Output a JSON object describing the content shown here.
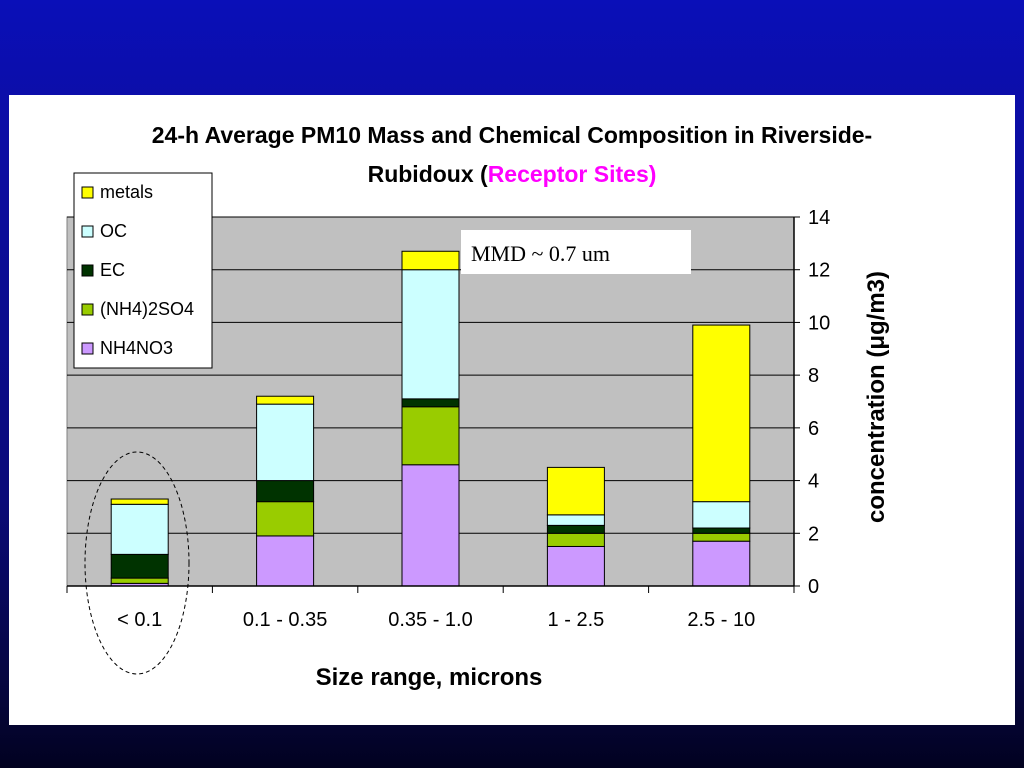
{
  "colors": {
    "background": "#0a0fb8",
    "panel": "#ffffff",
    "plot_area": "#c0c0c0",
    "title_accent": "#ff00ff",
    "NH4NO3": "#cc99ff",
    "(NH4)2SO4": "#99cc00",
    "EC": "#003300",
    "OC": "#ccffff",
    "metals": "#ffff00"
  },
  "chart_data": {
    "type": "bar",
    "stacked": true,
    "title_line1": "24-h Average PM10 Mass and Chemical Composition in Riverside-",
    "title_line2": "Rubidoux (",
    "title_accent": "Receptor Sites)",
    "xlabel": "Size range, microns",
    "ylabel": "concentration (μg/m3)",
    "y_axis_side": "right",
    "ylim": [
      0,
      14
    ],
    "yticks": [
      0,
      2,
      4,
      6,
      8,
      10,
      12,
      14
    ],
    "grid": true,
    "legend_position": "top-left",
    "categories": [
      "< 0.1",
      "0.1  - 0.35",
      "0.35 - 1.0",
      "1 - 2.5",
      "2.5 - 10"
    ],
    "series": [
      {
        "name": "NH4NO3",
        "values": [
          0.1,
          1.9,
          4.6,
          1.5,
          1.7
        ]
      },
      {
        "name": "(NH4)2SO4",
        "values": [
          0.2,
          1.3,
          2.2,
          0.5,
          0.3
        ]
      },
      {
        "name": "EC",
        "values": [
          0.9,
          0.8,
          0.3,
          0.3,
          0.2
        ]
      },
      {
        "name": "OC",
        "values": [
          1.9,
          2.9,
          4.9,
          0.4,
          1.0
        ]
      },
      {
        "name": "metals",
        "values": [
          0.2,
          0.3,
          0.7,
          1.8,
          6.7
        ]
      }
    ],
    "legend_order": [
      "metals",
      "OC",
      "EC",
      "(NH4)2SO4",
      "NH4NO3"
    ],
    "annotation": "MMD ~ 0.7 um",
    "highlighted_category": "< 0.1"
  }
}
